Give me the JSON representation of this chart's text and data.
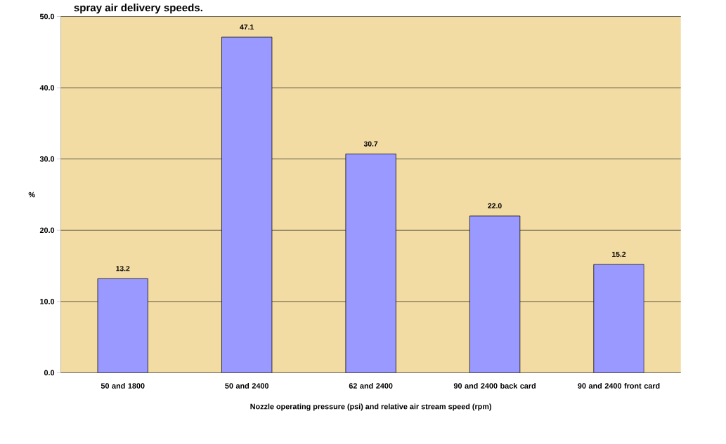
{
  "chart_data": {
    "type": "bar",
    "title": "spray air delivery speeds.",
    "categories": [
      "50 and 1800",
      "50 and 2400",
      "62 and 2400",
      "90 and 2400 back card",
      "90 and 2400 front card"
    ],
    "values": [
      13.2,
      47.1,
      30.7,
      22.0,
      15.2
    ],
    "value_labels": [
      "13.2",
      "47.1",
      "30.7",
      "22.0",
      "15.2"
    ],
    "color": "#9999ff",
    "xlabel": "Nozzle operating pressure (psi) and relative air stream speed (rpm)",
    "ylabel": "%",
    "ylim": [
      0,
      50
    ],
    "yticks": [
      {
        "value": 0,
        "label": "0.0"
      },
      {
        "value": 10,
        "label": "10.0"
      },
      {
        "value": 20,
        "label": "20.0"
      },
      {
        "value": 30,
        "label": "30.0"
      },
      {
        "value": 40,
        "label": "40.0"
      },
      {
        "value": 50,
        "label": "50.0"
      }
    ],
    "grid": "y"
  }
}
